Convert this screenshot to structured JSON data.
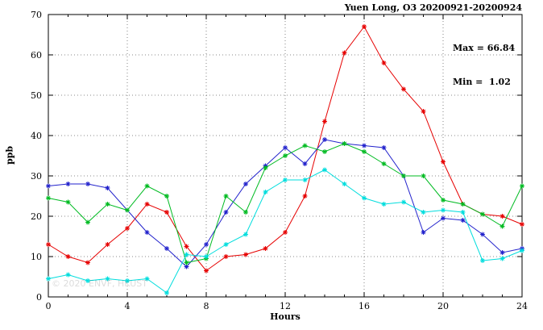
{
  "header": {
    "title": "Yuen Long, O3 20200921-20200924"
  },
  "annotation": {
    "max_label": "Max = 66.84",
    "min_label": "Min =  1.02"
  },
  "watermark": "© 2020 ENVF, HKUST",
  "chart_data": {
    "type": "line",
    "title": "Yuen Long, O3 20200921-20200924",
    "xlabel": "Hours",
    "ylabel": "ppb",
    "xlim": [
      0,
      24
    ],
    "ylim": [
      0,
      70
    ],
    "xtick": 4,
    "ytick": 10,
    "grid": true,
    "legend_position": "none",
    "marker": "asterisk",
    "annotations": [
      "Max = 66.84",
      "Min =  1.02"
    ],
    "x": [
      0,
      1,
      2,
      3,
      4,
      5,
      6,
      7,
      8,
      9,
      10,
      11,
      12,
      13,
      14,
      15,
      16,
      17,
      18,
      19,
      20,
      21,
      22,
      23,
      24
    ],
    "series": [
      {
        "name": "red",
        "color": "#e60000",
        "values": [
          13,
          10,
          8.5,
          13,
          17,
          23,
          21,
          12.5,
          6.5,
          10,
          10.5,
          12,
          16,
          25,
          43.5,
          60.5,
          67,
          58,
          51.5,
          46,
          33.5,
          23,
          20.5,
          20,
          18
        ]
      },
      {
        "name": "blue",
        "color": "#2222cc",
        "values": [
          27.5,
          28,
          28,
          27,
          21.5,
          16,
          12,
          7.5,
          13,
          21,
          28,
          32.5,
          37,
          33,
          39,
          38,
          37.5,
          37,
          30,
          16,
          19.5,
          19,
          15.5,
          11,
          12
        ]
      },
      {
        "name": "green",
        "color": "#00bb22",
        "values": [
          24.5,
          23.5,
          18.5,
          23,
          21.5,
          27.5,
          25,
          8.5,
          9.5,
          25,
          21,
          32,
          35,
          37.5,
          36,
          38,
          36,
          33,
          30,
          30,
          24,
          23,
          20.5,
          17.5,
          27.5
        ]
      },
      {
        "name": "cyan",
        "color": "#00dddd",
        "values": [
          4.5,
          5.5,
          4,
          4.5,
          4,
          4.5,
          1,
          10.5,
          10,
          13,
          15.5,
          26,
          29,
          29,
          31.5,
          28,
          24.5,
          23,
          23.5,
          21,
          21.5,
          21,
          9,
          9.5,
          11.5
        ]
      }
    ]
  }
}
